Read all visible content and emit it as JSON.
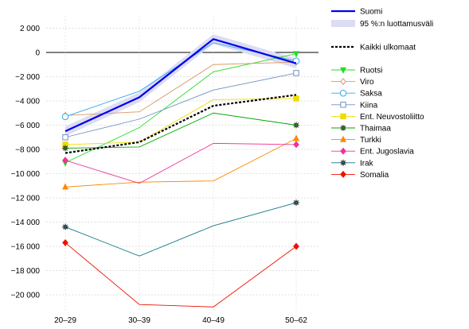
{
  "chart_data": {
    "type": "line",
    "title": "",
    "xlabel": "",
    "ylabel": "",
    "categories": [
      "20–29",
      "30–39",
      "40–49",
      "50–62"
    ],
    "ylim": [
      -21000,
      2500
    ],
    "yticks": [
      2000,
      0,
      -2000,
      -4000,
      -6000,
      -8000,
      -10000,
      -12000,
      -14000,
      -16000,
      -18000,
      -20000
    ],
    "ytick_labels": [
      "2 000",
      "0",
      "−2 000",
      "−4 000",
      "−6 000",
      "−8 000",
      "−10 000",
      "−12 000",
      "−14 000",
      "−16 000",
      "−18 000",
      "−20 000"
    ],
    "grid": true,
    "legend_position": "right",
    "main_series": {
      "name": "Suomi",
      "values": [
        -6500,
        -3700,
        1100,
        -900
      ],
      "color": "#0000ee",
      "ci_label": "95 %:n luottamusväli",
      "ci_lower": [
        -6900,
        -4100,
        700,
        -1300
      ],
      "ci_upper": [
        -6100,
        -3300,
        1500,
        -500
      ],
      "ci_color": "#dcdcf4"
    },
    "average_series": {
      "name": "Kaikki ulkomaat",
      "values": [
        -8300,
        -7400,
        -4400,
        -3500
      ],
      "color": "#000000"
    },
    "series": [
      {
        "name": "Ruotsi",
        "values": [
          -9100,
          -6200,
          -1600,
          -100
        ],
        "color": "#22dd22",
        "marker": "tri_down"
      },
      {
        "name": "Viro",
        "values": [
          -5200,
          -4900,
          -1000,
          -800
        ],
        "color": "#d89868",
        "marker": "diamond_open"
      },
      {
        "name": "Saksa",
        "values": [
          -5300,
          -3200,
          800,
          -700
        ],
        "color": "#33aaee",
        "marker": "circle_open"
      },
      {
        "name": "Kiina",
        "values": [
          -7000,
          -5500,
          -3100,
          -1700
        ],
        "color": "#7090c0",
        "marker": "square_open"
      },
      {
        "name": "Ent. Neuvostoliitto",
        "values": [
          -7600,
          -7400,
          -3900,
          -3800
        ],
        "color": "#eedd00",
        "marker": "square"
      },
      {
        "name": "Thaimaa",
        "values": [
          -7900,
          -7800,
          -5000,
          -6000
        ],
        "color": "#00aa00",
        "marker": "star"
      },
      {
        "name": "Turkki",
        "values": [
          -11100,
          -10700,
          -10600,
          -7100
        ],
        "color": "#ff8800",
        "marker": "triangle"
      },
      {
        "name": "Ent. Jugoslavia",
        "values": [
          -8900,
          -10800,
          -7500,
          -7600
        ],
        "color": "#ee3399",
        "marker": "diamond"
      },
      {
        "name": "Irak",
        "values": [
          -14400,
          -16800,
          -14300,
          -12400
        ],
        "color": "#117788",
        "marker": "star"
      },
      {
        "name": "Somalia",
        "values": [
          -15700,
          -20800,
          -21000,
          -16000
        ],
        "color": "#ee1100",
        "marker": "diamond"
      }
    ]
  }
}
